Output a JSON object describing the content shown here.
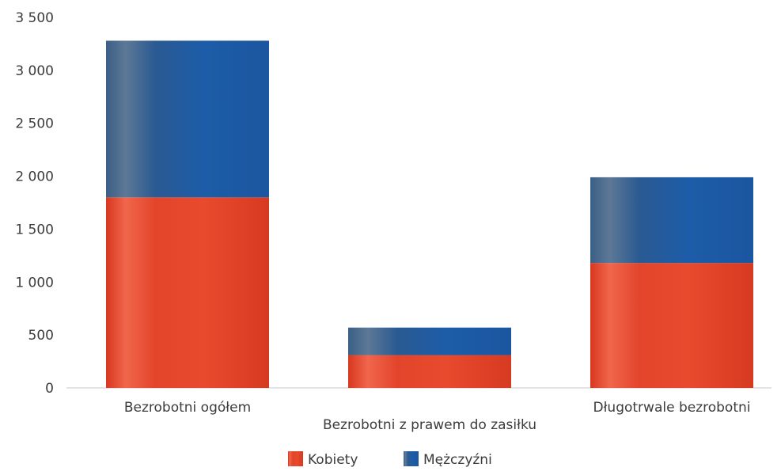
{
  "chart_data": {
    "type": "bar",
    "stacked": true,
    "categories": [
      "Bezrobotni ogółem",
      "Bezrobotni z prawem do zasiłku",
      "Długotrwale bezrobotni"
    ],
    "series": [
      {
        "name": "Kobiety",
        "values": [
          1800,
          310,
          1180
        ],
        "color": "#e8432a"
      },
      {
        "name": "Mężczyźni",
        "values": [
          1480,
          260,
          810
        ],
        "color": "#1f5fa8"
      }
    ],
    "ylim": [
      0,
      3500
    ],
    "yticks": [
      {
        "value": 0,
        "label": "0"
      },
      {
        "value": 500,
        "label": "500"
      },
      {
        "value": 1000,
        "label": "1 000"
      },
      {
        "value": 1500,
        "label": "1 500"
      },
      {
        "value": 2000,
        "label": "2 000"
      },
      {
        "value": 2500,
        "label": "2 500"
      },
      {
        "value": 3000,
        "label": "3 000"
      },
      {
        "value": 3500,
        "label": "3 500"
      }
    ],
    "grid": false,
    "legend_position": "bottom"
  }
}
